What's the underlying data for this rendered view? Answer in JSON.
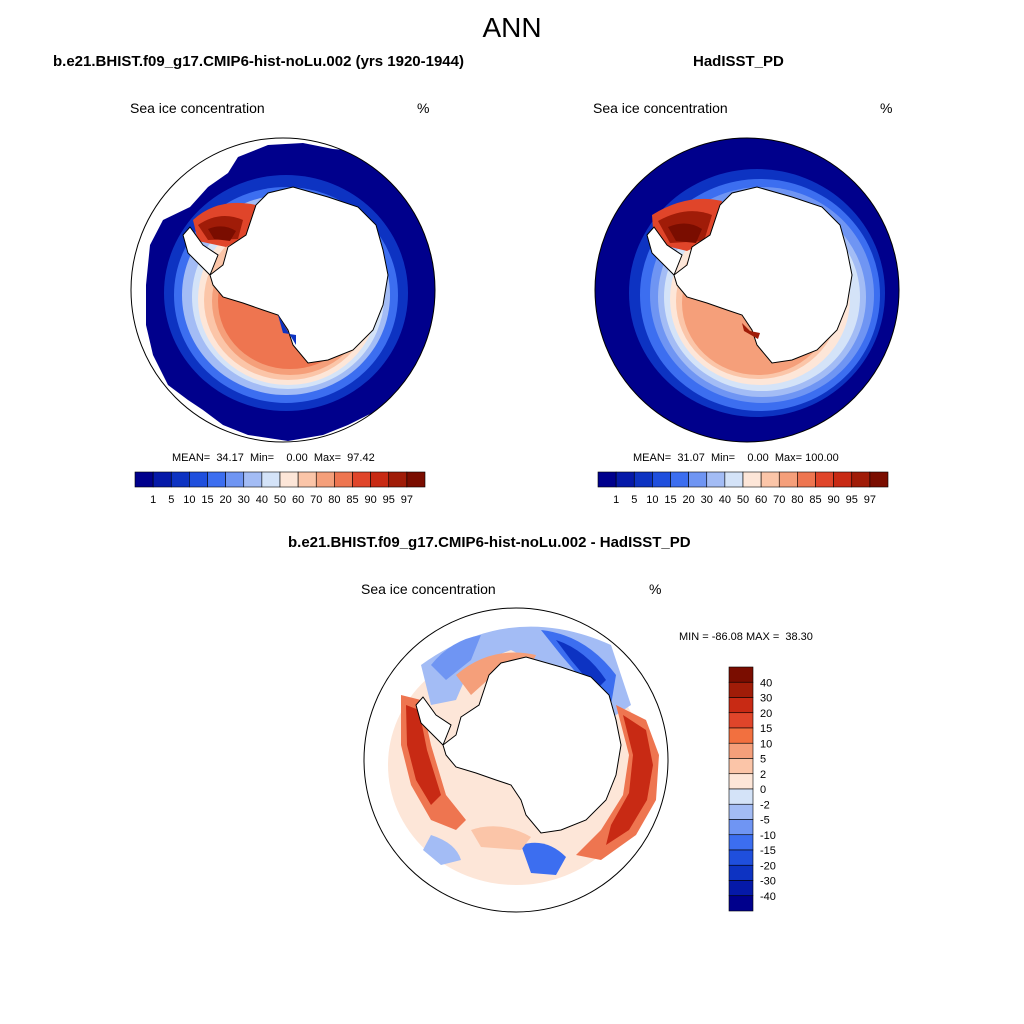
{
  "main_title": "ANN",
  "panels": [
    {
      "title": "b.e21.BHIST.f09_g17.CMIP6-hist-noLu.002 (yrs 1920-1944)",
      "variable": "Sea ice concentration",
      "units": "%",
      "stats": "MEAN=  34.17  Min=    0.00  Max=  97.42"
    },
    {
      "title": "HadISST_PD",
      "variable": "Sea ice concentration",
      "units": "%",
      "stats": "MEAN=  31.07  Min=    0.00  Max= 100.00"
    },
    {
      "title": "b.e21.BHIST.f09_g17.CMIP6-hist-noLu.002 - HadISST_PD",
      "variable": "Sea ice concentration",
      "units": "%",
      "stats": "MIN = -86.08 MAX =  38.30"
    }
  ],
  "chart_data": [
    {
      "type": "heatmap",
      "projection": "south polar stereographic",
      "title": "b.e21.BHIST.f09_g17.CMIP6-hist-noLu.002 (yrs 1920-1944)",
      "variable": "Sea ice concentration",
      "units": "%",
      "mean": 34.17,
      "min": 0.0,
      "max": 97.42,
      "colorbar": {
        "orientation": "horizontal",
        "levels": [
          1,
          5,
          10,
          15,
          20,
          30,
          40,
          50,
          60,
          70,
          80,
          85,
          90,
          95,
          97
        ],
        "colors": [
          "#00008c",
          "#0519a8",
          "#0d33c2",
          "#1f4fdd",
          "#3c6ef0",
          "#6f95f3",
          "#a3bcf5",
          "#d4e3f8",
          "#fde6d8",
          "#fbc5a8",
          "#f59f7a",
          "#ee7550",
          "#e0452a",
          "#c82a14",
          "#a01c08",
          "#7a0d00"
        ]
      }
    },
    {
      "type": "heatmap",
      "projection": "south polar stereographic",
      "title": "HadISST_PD",
      "variable": "Sea ice concentration",
      "units": "%",
      "mean": 31.07,
      "min": 0.0,
      "max": 100.0,
      "colorbar": {
        "orientation": "horizontal",
        "levels": [
          1,
          5,
          10,
          15,
          20,
          30,
          40,
          50,
          60,
          70,
          80,
          85,
          90,
          95,
          97
        ],
        "colors": [
          "#00008c",
          "#0519a8",
          "#0d33c2",
          "#1f4fdd",
          "#3c6ef0",
          "#6f95f3",
          "#a3bcf5",
          "#d4e3f8",
          "#fde6d8",
          "#fbc5a8",
          "#f59f7a",
          "#ee7550",
          "#e0452a",
          "#c82a14",
          "#a01c08",
          "#7a0d00"
        ]
      }
    },
    {
      "type": "heatmap",
      "projection": "south polar stereographic",
      "title": "b.e21.BHIST.f09_g17.CMIP6-hist-noLu.002 - HadISST_PD",
      "variable": "Sea ice concentration",
      "units": "%",
      "min": -86.08,
      "max": 38.3,
      "colorbar": {
        "orientation": "vertical",
        "levels": [
          40,
          30,
          20,
          15,
          10,
          5,
          2,
          0,
          -2,
          -5,
          -10,
          -15,
          -20,
          -30,
          -40
        ],
        "colors": [
          "#7a0d00",
          "#a01c08",
          "#c82a14",
          "#e0452a",
          "#f2703f",
          "#f59f7a",
          "#fbc5a8",
          "#fde6d8",
          "#d4e3f8",
          "#a3bcf5",
          "#6f95f3",
          "#3c6ef0",
          "#1f4fdd",
          "#0d33c2",
          "#0519a8",
          "#00008c"
        ]
      }
    }
  ]
}
